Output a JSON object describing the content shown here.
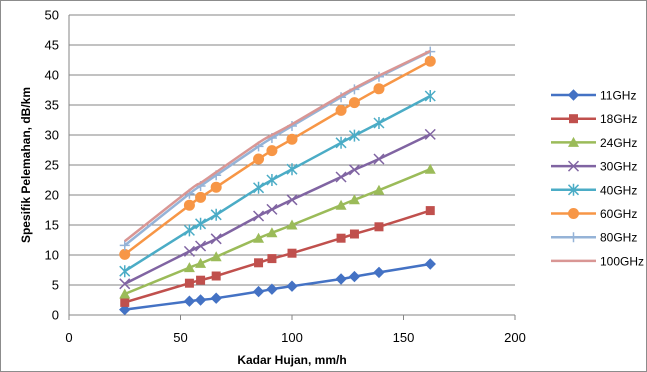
{
  "chart_data": {
    "type": "line",
    "title": "",
    "xlabel": "Kadar Hujan, mm/h",
    "ylabel": "Spesifik Pelemahan, dB/km",
    "xlim": [
      0,
      200
    ],
    "ylim": [
      0,
      50
    ],
    "x_ticks": [
      "0",
      "50",
      "100",
      "150",
      "200"
    ],
    "y_ticks": [
      "0",
      "5",
      "10",
      "15",
      "20",
      "25",
      "30",
      "35",
      "40",
      "45",
      "50"
    ],
    "grid": "horizontal",
    "legend_position": "right",
    "x": [
      25,
      54,
      59,
      66,
      85,
      91,
      100,
      122,
      128,
      139,
      162
    ],
    "series": [
      {
        "name": "11GHz",
        "color": "#4472C4",
        "marker": "diamond",
        "values": [
          0.9,
          2.3,
          2.5,
          2.8,
          3.9,
          4.3,
          4.8,
          6.0,
          6.4,
          7.1,
          8.5
        ]
      },
      {
        "name": "18GHz",
        "color": "#C0504D",
        "marker": "square",
        "values": [
          2.1,
          5.3,
          5.8,
          6.5,
          8.7,
          9.4,
          10.3,
          12.8,
          13.5,
          14.7,
          17.4
        ]
      },
      {
        "name": "24GHz",
        "color": "#9BBB59",
        "marker": "triangle",
        "values": [
          3.5,
          7.9,
          8.6,
          9.7,
          12.8,
          13.7,
          15.0,
          18.3,
          19.2,
          20.8,
          24.3
        ]
      },
      {
        "name": "30GHz",
        "color": "#8064A2",
        "marker": "x",
        "values": [
          5.2,
          10.6,
          11.5,
          12.7,
          16.5,
          17.6,
          19.2,
          23.0,
          24.2,
          26.0,
          30.1
        ]
      },
      {
        "name": "40GHz",
        "color": "#4BACC6",
        "marker": "star",
        "values": [
          7.3,
          14.1,
          15.2,
          16.7,
          21.2,
          22.5,
          24.3,
          28.7,
          29.9,
          32.0,
          36.5
        ]
      },
      {
        "name": "60GHz",
        "color": "#F79646",
        "marker": "circle",
        "values": [
          10.1,
          18.3,
          19.6,
          21.3,
          26.0,
          27.4,
          29.3,
          34.1,
          35.4,
          37.7,
          42.3
        ]
      },
      {
        "name": "80GHz",
        "color": "#95B3D7",
        "marker": "plus",
        "values": [
          11.6,
          20.2,
          21.5,
          23.3,
          28.1,
          29.5,
          31.5,
          36.3,
          37.6,
          39.7,
          43.9
        ]
      },
      {
        "name": "100GHz",
        "color": "#D99694",
        "marker": "dash",
        "values": [
          12.3,
          20.8,
          22.0,
          23.8,
          28.7,
          30.0,
          31.8,
          36.6,
          37.8,
          39.9,
          44.0
        ]
      }
    ]
  }
}
